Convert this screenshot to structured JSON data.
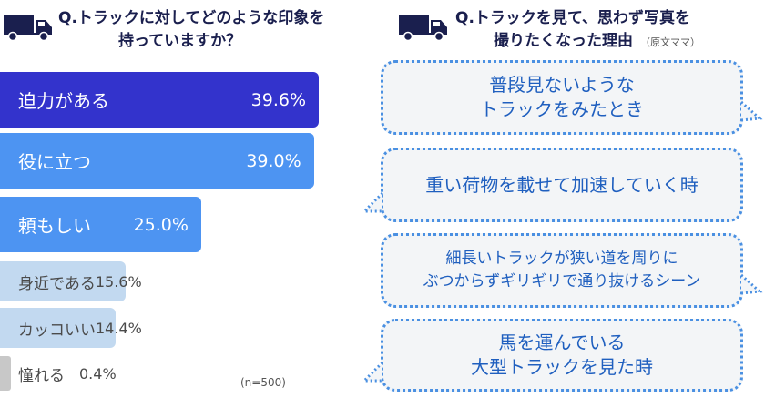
{
  "left": {
    "title_line1": "Q.トラックに対してどのような印象を",
    "title_line2": "持っていますか？",
    "icon": "truck-icon",
    "sample_note": "(n=500)"
  },
  "chart_data": {
    "type": "bar",
    "orientation": "horizontal",
    "title": "Q.トラックに対してどのような印象を持っていますか？",
    "categories": [
      "迫力がある",
      "役に立つ",
      "頼もしい",
      "身近である",
      "カッコいい",
      "憧れる"
    ],
    "values": [
      39.6,
      39.0,
      25.0,
      15.6,
      14.4,
      0.4
    ],
    "value_labels": [
      "39.6%",
      "39.0%",
      "25.0%",
      "15.6%",
      "14.4%",
      "0.4%"
    ],
    "unit": "%",
    "colors": [
      "#3333cc",
      "#4d94f2",
      "#4d94f2",
      "#c2d9f0",
      "#c2d9f0",
      "#c8c8c8"
    ]
  },
  "right": {
    "title_line1": "Q.トラックを見て、思わず写真を",
    "title_line2": "撮りたくなった理由",
    "title_note": "（原文ママ）",
    "icon": "truck-icon",
    "answers": [
      "普段見ないような\nトラックをみたとき",
      "重い荷物を載せて加速していく時",
      "細長いトラックが狭い道を周りに\nぶつからずギリギリで通り抜けるシーン",
      "馬を運んでいる\n大型トラックを見た時"
    ],
    "colors": {
      "bubble_border": "#4a90e2",
      "bubble_fill": "#f3f5f7",
      "text": "#1f5fbf"
    }
  }
}
